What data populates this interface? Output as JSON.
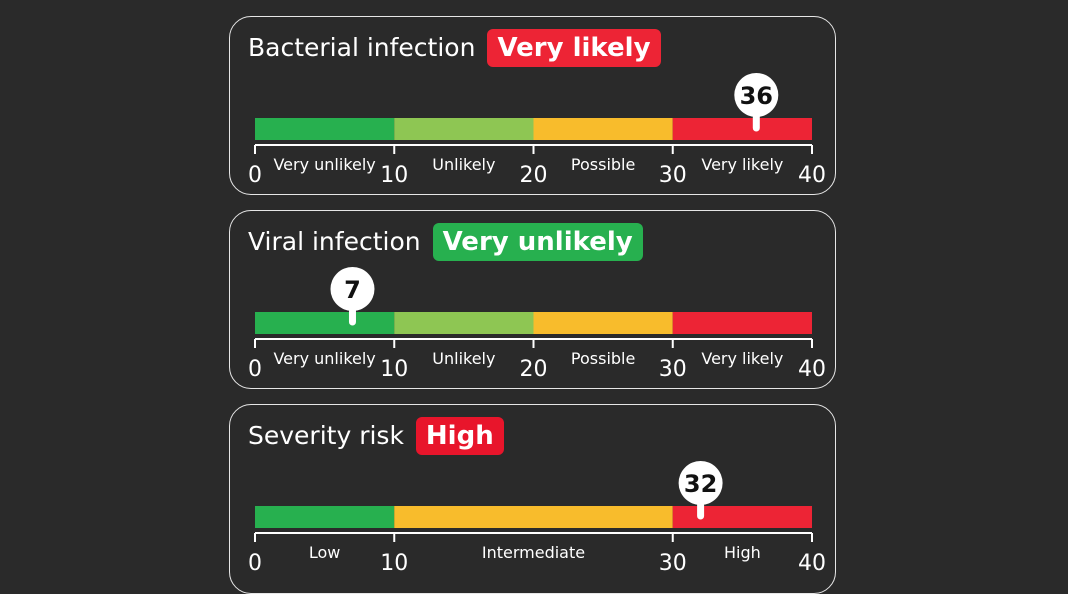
{
  "colors": {
    "background": "#2a2a2a",
    "very_unlikely": "#27b04f",
    "unlikely": "#8ec653",
    "possible": "#f8bc2c",
    "very_likely": "#ed2435",
    "high": "#e8152b",
    "card_border": "#e6e6e6",
    "pin": "#ffffff"
  },
  "cards": [
    {
      "title": "Bacterial infection",
      "badge": "Very likely",
      "badge_color": "#ed2435",
      "value": 36,
      "value_label": "36",
      "scale": {
        "min": 0,
        "max": 40,
        "ticks": [
          "0",
          "10",
          "20",
          "30",
          "40"
        ],
        "tick_values": [
          0,
          10,
          20,
          30,
          40
        ],
        "segments": [
          {
            "from": 0,
            "to": 10,
            "label": "Very unlikely",
            "color": "#27b04f"
          },
          {
            "from": 10,
            "to": 20,
            "label": "Unlikely",
            "color": "#8ec653"
          },
          {
            "from": 20,
            "to": 30,
            "label": "Possible",
            "color": "#f8bc2c"
          },
          {
            "from": 30,
            "to": 40,
            "label": "Very likely",
            "color": "#ed2435"
          }
        ]
      }
    },
    {
      "title": "Viral infection",
      "badge": "Very unlikely",
      "badge_color": "#27b04f",
      "value": 7,
      "value_label": "7",
      "scale": {
        "min": 0,
        "max": 40,
        "ticks": [
          "0",
          "10",
          "20",
          "30",
          "40"
        ],
        "tick_values": [
          0,
          10,
          20,
          30,
          40
        ],
        "segments": [
          {
            "from": 0,
            "to": 10,
            "label": "Very unlikely",
            "color": "#27b04f"
          },
          {
            "from": 10,
            "to": 20,
            "label": "Unlikely",
            "color": "#8ec653"
          },
          {
            "from": 20,
            "to": 30,
            "label": "Possible",
            "color": "#f8bc2c"
          },
          {
            "from": 30,
            "to": 40,
            "label": "Very likely",
            "color": "#ed2435"
          }
        ]
      }
    },
    {
      "title": "Severity risk",
      "badge": "High",
      "badge_color": "#e8152b",
      "value": 32,
      "value_label": "32",
      "scale": {
        "min": 0,
        "max": 40,
        "ticks": [
          "0",
          "10",
          "30",
          "40"
        ],
        "tick_values": [
          0,
          10,
          30,
          40
        ],
        "segments": [
          {
            "from": 0,
            "to": 10,
            "label": "Low",
            "color": "#27b04f"
          },
          {
            "from": 10,
            "to": 30,
            "label": "Intermediate",
            "color": "#f8bc2c"
          },
          {
            "from": 30,
            "to": 40,
            "label": "High",
            "color": "#ed2435"
          }
        ]
      }
    }
  ]
}
